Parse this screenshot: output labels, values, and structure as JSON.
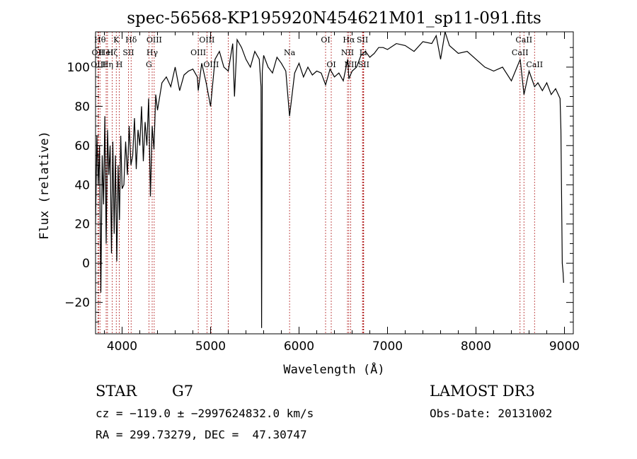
{
  "chart_data": {
    "type": "line",
    "title": "spec-56568-KP195920N454621M01_sp11-091.fits",
    "xlabel": "Wavelength (Å)",
    "ylabel": "Flux (relative)",
    "xlim": [
      3700,
      9100
    ],
    "ylim": [
      -36,
      118
    ],
    "xticks": [
      4000,
      5000,
      6000,
      7000,
      8000,
      9000
    ],
    "yticks": [
      -20,
      0,
      20,
      40,
      60,
      80,
      100
    ],
    "series": [
      {
        "name": "flux",
        "x": [
          3700,
          3715,
          3730,
          3745,
          3760,
          3775,
          3790,
          3805,
          3820,
          3835,
          3850,
          3865,
          3880,
          3895,
          3910,
          3925,
          3940,
          3955,
          3970,
          3985,
          4000,
          4020,
          4040,
          4060,
          4080,
          4100,
          4120,
          4140,
          4160,
          4180,
          4200,
          4220,
          4240,
          4260,
          4280,
          4300,
          4320,
          4340,
          4360,
          4380,
          4400,
          4450,
          4500,
          4550,
          4600,
          4650,
          4700,
          4750,
          4800,
          4850,
          4861,
          4900,
          4950,
          5000,
          5050,
          5100,
          5150,
          5200,
          5250,
          5270,
          5300,
          5350,
          5400,
          5450,
          5500,
          5550,
          5570,
          5577,
          5585,
          5600,
          5650,
          5700,
          5750,
          5800,
          5850,
          5893,
          5950,
          6000,
          6050,
          6100,
          6150,
          6200,
          6250,
          6300,
          6350,
          6400,
          6450,
          6500,
          6550,
          6563,
          6600,
          6650,
          6700,
          6750,
          6800,
          6850,
          6900,
          6950,
          7000,
          7100,
          7200,
          7300,
          7400,
          7500,
          7550,
          7600,
          7650,
          7700,
          7800,
          7900,
          8000,
          8100,
          8200,
          8300,
          8400,
          8500,
          8542,
          8600,
          8662,
          8700,
          8750,
          8800,
          8850,
          8900,
          8950,
          8960,
          8975,
          8985,
          8990
        ],
        "y": [
          20,
          65,
          40,
          60,
          -15,
          55,
          30,
          75,
          10,
          68,
          45,
          60,
          5,
          62,
          15,
          55,
          1,
          50,
          22,
          65,
          38,
          40,
          62,
          45,
          70,
          50,
          55,
          74,
          48,
          68,
          60,
          80,
          52,
          72,
          60,
          84,
          34,
          70,
          58,
          86,
          78,
          92,
          95,
          90,
          100,
          88,
          96,
          98,
          99,
          95,
          88,
          102,
          92,
          80,
          104,
          108,
          100,
          98,
          112,
          85,
          114,
          110,
          104,
          100,
          108,
          104,
          90,
          -33,
          98,
          106,
          100,
          97,
          105,
          102,
          98,
          75,
          97,
          102,
          95,
          100,
          96,
          98,
          97,
          91,
          99,
          95,
          97,
          93,
          104,
          94,
          98,
          100,
          106,
          108,
          105,
          107,
          110,
          110,
          109,
          112,
          111,
          108,
          113,
          112,
          116,
          104,
          118,
          111,
          107,
          108,
          104,
          100,
          98,
          100,
          93,
          104,
          86,
          98,
          90,
          92,
          88,
          92,
          86,
          89,
          84,
          68,
          0,
          -5,
          -10
        ]
      }
    ],
    "lines": [
      {
        "wavelength": 3750,
        "label": "Hθ",
        "row": 1
      },
      {
        "wavelength": 3727,
        "label": "OII",
        "row": 2
      },
      {
        "wavelength": 3734,
        "label": "OIII",
        "row": 3
      },
      {
        "wavelength": 3820,
        "label": "HeI",
        "row": 2
      },
      {
        "wavelength": 3835,
        "label": "Hη",
        "row": 3
      },
      {
        "wavelength": 3889,
        "label": "Hζ",
        "row": 2
      },
      {
        "wavelength": 3934,
        "label": "K",
        "row": 1
      },
      {
        "wavelength": 3968,
        "label": "H",
        "row": 3
      },
      {
        "wavelength": 4072,
        "label": "SII",
        "row": 2
      },
      {
        "wavelength": 4102,
        "label": "Hδ",
        "row": 1
      },
      {
        "wavelength": 4303,
        "label": "G",
        "row": 3
      },
      {
        "wavelength": 4340,
        "label": "Hγ",
        "row": 2
      },
      {
        "wavelength": 4363,
        "label": "OIII",
        "row": 1
      },
      {
        "wavelength": 4861,
        "label": "OIII",
        "row": 2
      },
      {
        "wavelength": 4959,
        "label": "OIII",
        "row": 1
      },
      {
        "wavelength": 5007,
        "label": "OIII",
        "row": 3
      },
      {
        "wavelength": 5200,
        "label": "",
        "row": 0
      },
      {
        "wavelength": 5893,
        "label": "Na",
        "row": 2
      },
      {
        "wavelength": 6300,
        "label": "OI",
        "row": 1
      },
      {
        "wavelength": 6364,
        "label": "OI",
        "row": 3
      },
      {
        "wavelength": 6548,
        "label": "NII",
        "row": 2
      },
      {
        "wavelength": 6563,
        "label": "Hα",
        "row": 1
      },
      {
        "wavelength": 6584,
        "label": "NII",
        "row": 3
      },
      {
        "wavelength": 6717,
        "label": "SII",
        "row": 1
      },
      {
        "wavelength": 6725,
        "label": "Li",
        "row": 2
      },
      {
        "wavelength": 6731,
        "label": "SII",
        "row": 3
      },
      {
        "wavelength": 8498,
        "label": "CaII",
        "row": 2
      },
      {
        "wavelength": 8542,
        "label": "CaII",
        "row": 1
      },
      {
        "wavelength": 8662,
        "label": "CaII",
        "row": 3
      }
    ]
  },
  "info": {
    "class_label": "STAR",
    "subclass": "G7",
    "survey": "LAMOST DR3",
    "cz_text": "cz = −119.0 ± −2997624832.0 km/s",
    "obs_date_text": "Obs-Date: 20131002",
    "coords_text": "RA = 299.73279, DEC =  47.30747"
  },
  "colors": {
    "spectrum": "#000000",
    "line_markers": "#b22222",
    "axes": "#000000"
  }
}
